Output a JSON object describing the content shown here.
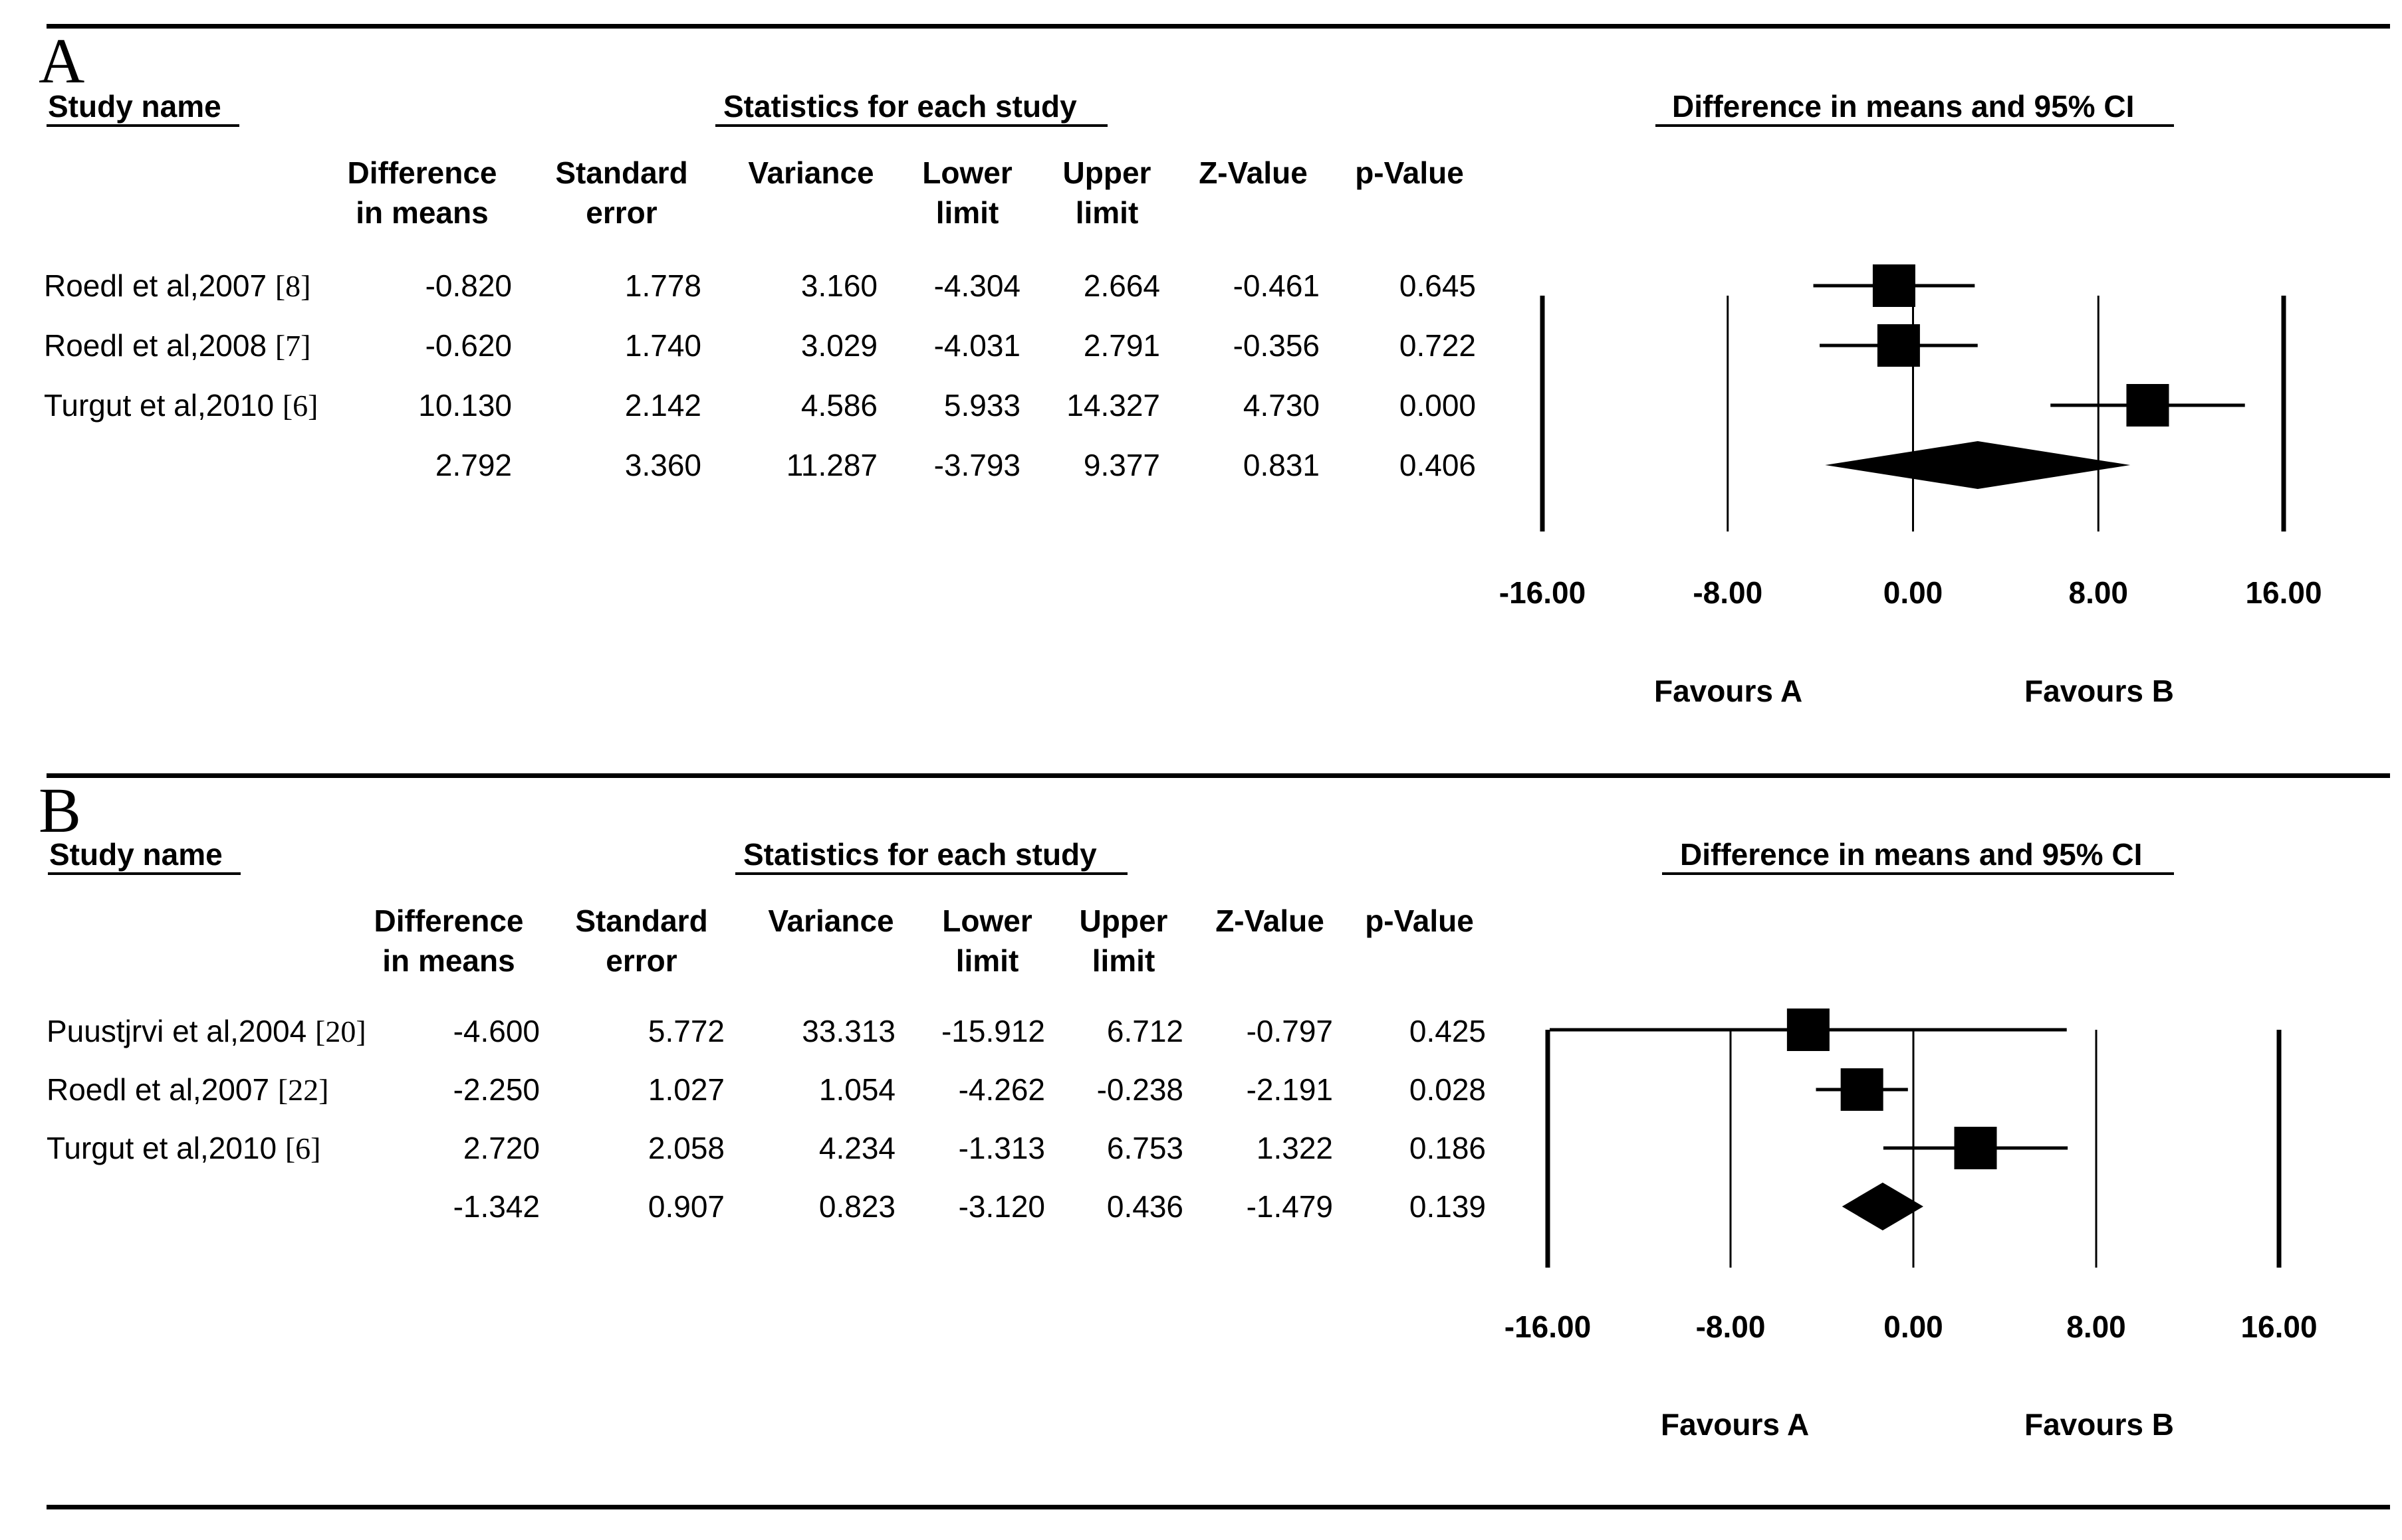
{
  "chart_data": [
    {
      "type": "forest",
      "panel": "A",
      "headers": {
        "study_name": "Study name",
        "statistics": "Statistics for each study",
        "ci_title": "Difference in means and 95% CI"
      },
      "columns": [
        [
          "Difference",
          "in means"
        ],
        [
          "Standard",
          "error"
        ],
        [
          "",
          "Variance"
        ],
        [
          "Lower",
          "limit"
        ],
        [
          "Upper",
          "limit"
        ],
        [
          "",
          "Z-Value"
        ],
        [
          "",
          "p-Value"
        ]
      ],
      "rows": [
        {
          "study": "Roedl et al,2007",
          "ref": "[8]",
          "values": [
            "-0.820",
            "1.778",
            "3.160",
            "-4.304",
            "2.664",
            "-0.461",
            "0.645"
          ],
          "mean": -0.82,
          "lower": -4.304,
          "upper": 2.664,
          "summary": false
        },
        {
          "study": "Roedl et al,2008",
          "ref": "[7]",
          "values": [
            "-0.620",
            "1.740",
            "3.029",
            "-4.031",
            "2.791",
            "-0.356",
            "0.722"
          ],
          "mean": -0.62,
          "lower": -4.031,
          "upper": 2.791,
          "summary": false
        },
        {
          "study": "Turgut et al,2010",
          "ref": "[6]",
          "values": [
            "10.130",
            "2.142",
            "4.586",
            "5.933",
            "14.327",
            "4.730",
            "0.000"
          ],
          "mean": 10.13,
          "lower": 5.933,
          "upper": 14.327,
          "summary": false
        },
        {
          "study": "",
          "ref": "",
          "values": [
            "2.792",
            "3.360",
            "11.287",
            "-3.793",
            "9.377",
            "0.831",
            "0.406"
          ],
          "mean": 2.792,
          "lower": -3.793,
          "upper": 9.377,
          "summary": true
        }
      ],
      "xlim": [
        -16,
        16
      ],
      "ticks": [
        -16,
        -8,
        0,
        8,
        16
      ],
      "tick_labels": [
        "-16.00",
        "-8.00",
        "0.00",
        "8.00",
        "16.00"
      ],
      "favours_left": "Favours A",
      "favours_right": "Favours B"
    },
    {
      "type": "forest",
      "panel": "B",
      "headers": {
        "study_name": "Study name",
        "statistics": "Statistics for each study",
        "ci_title": "Difference in means and 95% CI"
      },
      "columns": [
        [
          "Difference",
          "in means"
        ],
        [
          "Standard",
          "error"
        ],
        [
          "",
          "Variance"
        ],
        [
          "Lower",
          "limit"
        ],
        [
          "Upper",
          "limit"
        ],
        [
          "",
          "Z-Value"
        ],
        [
          "",
          "p-Value"
        ]
      ],
      "rows": [
        {
          "study": "Puustjrvi et al,2004",
          "ref": "[20]",
          "values": [
            "-4.600",
            "5.772",
            "33.313",
            "-15.912",
            "6.712",
            "-0.797",
            "0.425"
          ],
          "mean": -4.6,
          "lower": -15.912,
          "upper": 6.712,
          "summary": false
        },
        {
          "study": "Roedl et al,2007",
          "ref": "[22]",
          "values": [
            "-2.250",
            "1.027",
            "1.054",
            "-4.262",
            "-0.238",
            "-2.191",
            "0.028"
          ],
          "mean": -2.25,
          "lower": -4.262,
          "upper": -0.238,
          "summary": false
        },
        {
          "study": "Turgut et al,2010",
          "ref": "[6]",
          "values": [
            "2.720",
            "2.058",
            "4.234",
            "-1.313",
            "6.753",
            "1.322",
            "0.186"
          ],
          "mean": 2.72,
          "lower": -1.313,
          "upper": 6.753,
          "summary": false
        },
        {
          "study": "",
          "ref": "",
          "values": [
            "-1.342",
            "0.907",
            "0.823",
            "-3.120",
            "0.436",
            "-1.479",
            "0.139"
          ],
          "mean": -1.342,
          "lower": -3.12,
          "upper": 0.436,
          "summary": true
        }
      ],
      "xlim": [
        -16,
        16
      ],
      "ticks": [
        -16,
        -8,
        0,
        8,
        16
      ],
      "tick_labels": [
        "-16.00",
        "-8.00",
        "0.00",
        "8.00",
        "16.00"
      ],
      "favours_left": "Favours A",
      "favours_right": "Favours B"
    }
  ]
}
